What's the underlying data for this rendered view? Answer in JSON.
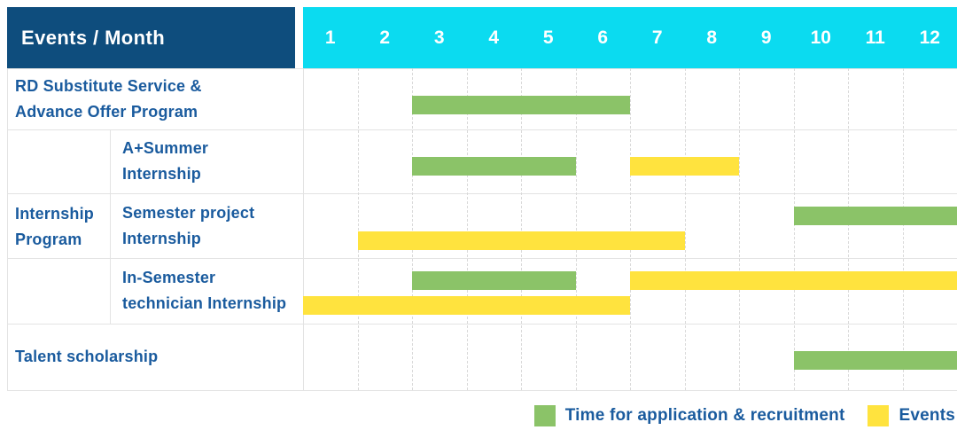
{
  "header": {
    "title": "Events / Month",
    "months": [
      "1",
      "2",
      "3",
      "4",
      "5",
      "6",
      "7",
      "8",
      "9",
      "10",
      "11",
      "12"
    ]
  },
  "group_label_lines": [
    "Internship",
    "Program"
  ],
  "rows": [
    {
      "id": "rd-substitute-service",
      "group": null,
      "label_lines": [
        "RD Substitute Service &",
        "Advance Offer Program"
      ],
      "bars": [
        {
          "kind": "application",
          "start": 3,
          "end": 6,
          "track": "single"
        }
      ]
    },
    {
      "id": "a-plus-summer-internship",
      "group": "Internship Program",
      "label_lines": [
        "A+Summer",
        "Internship"
      ],
      "bars": [
        {
          "kind": "application",
          "start": 3,
          "end": 5,
          "track": "single"
        },
        {
          "kind": "event",
          "start": 7,
          "end": 8,
          "track": "single"
        }
      ]
    },
    {
      "id": "semester-project-internship",
      "group": "Internship Program",
      "label_lines": [
        "Semester project",
        "Internship"
      ],
      "bars": [
        {
          "kind": "application",
          "start": 10,
          "end": 12,
          "track": "upper"
        },
        {
          "kind": "event",
          "start": 2,
          "end": 7,
          "track": "lower"
        }
      ]
    },
    {
      "id": "in-semester-technician-internship",
      "group": "Internship Program",
      "label_lines": [
        "In-Semester",
        "technician Internship"
      ],
      "bars": [
        {
          "kind": "application",
          "start": 3,
          "end": 5,
          "track": "upper"
        },
        {
          "kind": "event",
          "start": 7,
          "end": 12,
          "track": "upper"
        },
        {
          "kind": "event",
          "start": 1,
          "end": 6,
          "track": "lower"
        }
      ]
    },
    {
      "id": "talent-scholarship",
      "group": null,
      "label_lines": [
        "Talent scholarship"
      ],
      "bars": [
        {
          "kind": "application",
          "start": 10,
          "end": 12,
          "track": "single"
        }
      ]
    }
  ],
  "legend": {
    "items": [
      {
        "kind": "application",
        "label": "Time for application & recruitment"
      },
      {
        "kind": "event",
        "label": "Events"
      }
    ]
  },
  "colors": {
    "navy": "#0e4d7d",
    "cyan": "#0bdbf0",
    "application_green": "#8bc368",
    "event_yellow": "#ffe33e",
    "label_blue": "#1a5b9e",
    "grid_border": "#e3e3e3",
    "month_divider": "#d9d9d9"
  },
  "chart_data": {
    "type": "gantt",
    "title": "Events / Month",
    "x_axis": {
      "label": "Month",
      "ticks": [
        1,
        2,
        3,
        4,
        5,
        6,
        7,
        8,
        9,
        10,
        11,
        12
      ],
      "range": [
        1,
        12
      ]
    },
    "grid": "dashed-vertical-month-lines",
    "legend_position": "bottom-right",
    "legend": [
      {
        "label": "Time for application & recruitment",
        "color": "#8bc368"
      },
      {
        "label": "Events",
        "color": "#ffe33e"
      }
    ],
    "tasks": [
      {
        "name": "RD Substitute Service & Advance Offer Program",
        "group": null,
        "application_months": [
          [
            3,
            6
          ]
        ],
        "event_months": []
      },
      {
        "name": "A+Summer Internship",
        "group": "Internship Program",
        "application_months": [
          [
            3,
            5
          ]
        ],
        "event_months": [
          [
            7,
            8
          ]
        ]
      },
      {
        "name": "Semester project Internship",
        "group": "Internship Program",
        "application_months": [
          [
            10,
            12
          ]
        ],
        "event_months": [
          [
            2,
            7
          ]
        ]
      },
      {
        "name": "In-Semester technician Internship",
        "group": "Internship Program",
        "application_months": [
          [
            3,
            5
          ]
        ],
        "event_months": [
          [
            1,
            6
          ],
          [
            7,
            12
          ]
        ]
      },
      {
        "name": "Talent scholarship",
        "group": null,
        "application_months": [
          [
            10,
            12
          ]
        ],
        "event_months": []
      }
    ]
  }
}
